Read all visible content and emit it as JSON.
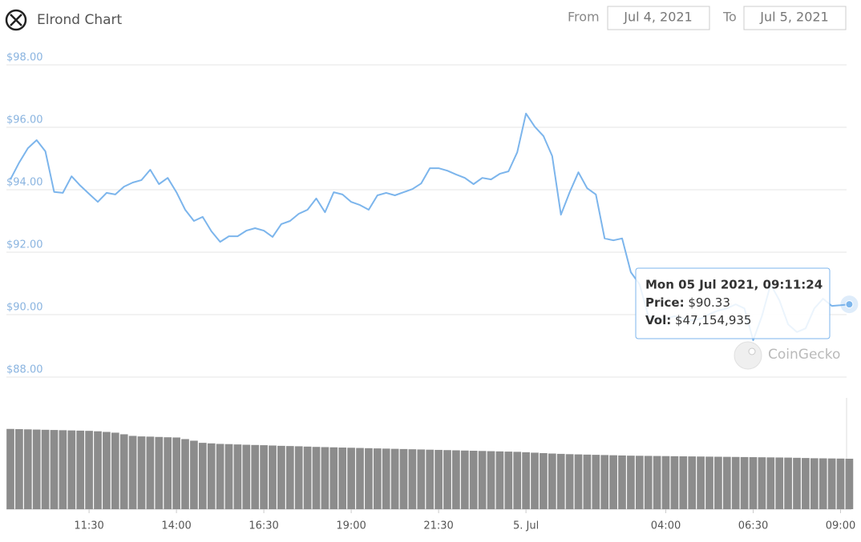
{
  "header": {
    "from_label": "From",
    "from_date": "Jul 4, 2021",
    "to_label": "To",
    "to_date": "Jul 5, 2021"
  },
  "chart_data": [
    {
      "type": "line",
      "title": "Elrond Chart",
      "color": "#7cb5ec",
      "grid": true,
      "ylim": [
        88,
        98
      ],
      "yticks": [
        {
          "value": 88,
          "label": "$88.00"
        },
        {
          "value": 90,
          "label": "$90.00"
        },
        {
          "value": 92,
          "label": "$92.00"
        },
        {
          "value": 94,
          "label": "$94.00"
        },
        {
          "value": 96,
          "label": "$96.00"
        },
        {
          "value": 98,
          "label": "$98.00"
        }
      ],
      "values": [
        94.33,
        94.87,
        95.33,
        95.59,
        95.23,
        93.93,
        93.9,
        94.43,
        94.13,
        93.87,
        93.61,
        93.9,
        93.85,
        94.1,
        94.23,
        94.31,
        94.64,
        94.18,
        94.38,
        93.92,
        93.36,
        93.0,
        93.13,
        92.67,
        92.33,
        92.51,
        92.51,
        92.69,
        92.77,
        92.69,
        92.49,
        92.9,
        93.0,
        93.23,
        93.36,
        93.72,
        93.28,
        93.92,
        93.85,
        93.61,
        93.51,
        93.36,
        93.82,
        93.9,
        93.82,
        93.92,
        94.02,
        94.2,
        94.69,
        94.69,
        94.61,
        94.49,
        94.38,
        94.18,
        94.38,
        94.33,
        94.51,
        94.59,
        95.2,
        96.44,
        96.02,
        95.72,
        95.08,
        93.2,
        93.92,
        94.56,
        94.05,
        93.85,
        92.44,
        92.38,
        92.44,
        91.36,
        90.97,
        89.95,
        89.82,
        89.87,
        89.95,
        89.87,
        89.82,
        89.87,
        90.02,
        90.13,
        90.2,
        90.33,
        90.2,
        89.18,
        89.95,
        90.97,
        90.46,
        89.69,
        89.44,
        89.56,
        90.2,
        90.51,
        90.28,
        90.3,
        90.33
      ]
    },
    {
      "type": "bar",
      "color": "#8c8c8c",
      "ylim": [
        0,
        104000000
      ],
      "categories": [
        null,
        null,
        null,
        null,
        null,
        null,
        null,
        null,
        null,
        "11:30",
        null,
        null,
        null,
        null,
        null,
        null,
        null,
        null,
        null,
        "14:00",
        null,
        null,
        null,
        null,
        null,
        null,
        null,
        null,
        null,
        "16:30",
        null,
        null,
        null,
        null,
        null,
        null,
        null,
        null,
        null,
        "19:00",
        null,
        null,
        null,
        null,
        null,
        null,
        null,
        null,
        null,
        "21:30",
        null,
        null,
        null,
        null,
        null,
        null,
        null,
        null,
        null,
        "5. Jul",
        null,
        null,
        null,
        null,
        null,
        null,
        null,
        null,
        null,
        null,
        null,
        null,
        null,
        null,
        null,
        "04:00",
        null,
        null,
        null,
        null,
        null,
        null,
        null,
        null,
        null,
        "06:30",
        null,
        null,
        null,
        null,
        null,
        null,
        null,
        null,
        null,
        "09:00",
        null
      ],
      "values": [
        75000000,
        74800000,
        74600000,
        74400000,
        74200000,
        74000000,
        73800000,
        73600000,
        73400000,
        73200000,
        72800000,
        72200000,
        71500000,
        70000000,
        68500000,
        68000000,
        67800000,
        67500000,
        67200000,
        67000000,
        65500000,
        64000000,
        62000000,
        61500000,
        61000000,
        60800000,
        60500000,
        60200000,
        60000000,
        59800000,
        59500000,
        59200000,
        59000000,
        58800000,
        58500000,
        58200000,
        58000000,
        57800000,
        57600000,
        57400000,
        57200000,
        57000000,
        56800000,
        56600000,
        56400000,
        56200000,
        56000000,
        55800000,
        55600000,
        55400000,
        55200000,
        55000000,
        54800000,
        54600000,
        54400000,
        54200000,
        54000000,
        53800000,
        53600000,
        53200000,
        52800000,
        52400000,
        52000000,
        51700000,
        51400000,
        51200000,
        51000000,
        50800000,
        50600000,
        50400000,
        50200000,
        50000000,
        49900000,
        49800000,
        49700000,
        49600000,
        49500000,
        49400000,
        49300000,
        49200000,
        49100000,
        49000000,
        48900000,
        48800000,
        48700000,
        48600000,
        48500000,
        48400000,
        48300000,
        48200000,
        48000000,
        47800000,
        47600000,
        47500000,
        47400000,
        47300000,
        47154935
      ]
    }
  ],
  "tooltip": {
    "title": "Mon 05 Jul 2021, 09:11:24",
    "price_label": "Price:",
    "price": "$90.33",
    "vol_label": "Vol:",
    "vol": "$47,154,935"
  },
  "watermark": "CoinGecko"
}
